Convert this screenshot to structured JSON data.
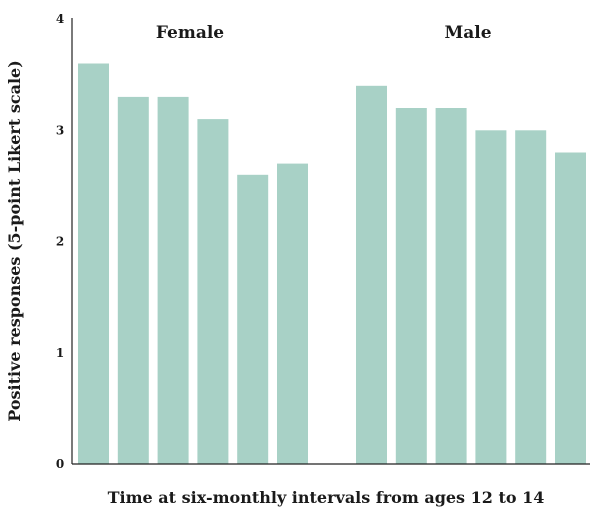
{
  "chart_data": {
    "type": "bar",
    "title": "",
    "xlabel": "Time at six-monthly intervals from ages 12 to 14",
    "ylabel": "Positive responses (5-point Likert scale)",
    "ylim": [
      0,
      4
    ],
    "yticks": [
      "0",
      "1",
      "2",
      "3",
      "4"
    ],
    "bar_color": "#a8d1c6",
    "grid": false,
    "groups": [
      {
        "name": "Female",
        "values": [
          3.6,
          3.3,
          3.3,
          3.1,
          2.6,
          2.7
        ]
      },
      {
        "name": "Male",
        "values": [
          3.4,
          3.2,
          3.2,
          3.0,
          3.0,
          2.8
        ]
      }
    ]
  }
}
